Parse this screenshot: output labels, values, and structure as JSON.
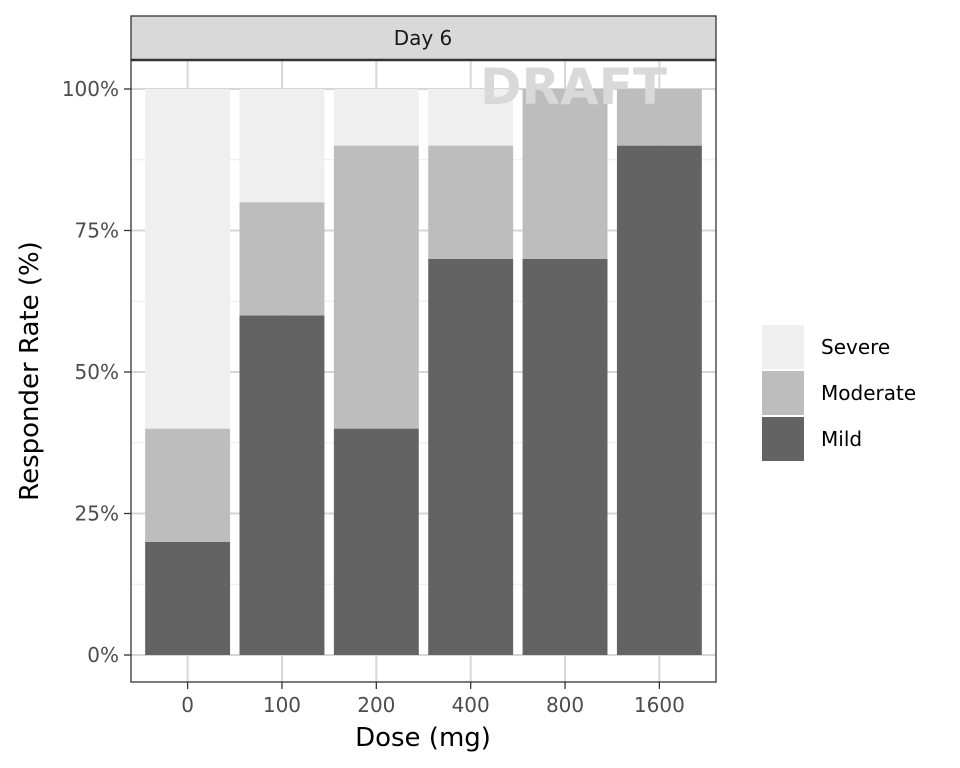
{
  "chart_data": {
    "type": "bar",
    "stacked": true,
    "facet_label": "Day 6",
    "watermark": "DRAFT",
    "categories": [
      "0",
      "100",
      "200",
      "400",
      "800",
      "1600"
    ],
    "series": [
      {
        "name": "Mild",
        "values": [
          20,
          60,
          40,
          70,
          70,
          90
        ],
        "color": "#636363"
      },
      {
        "name": "Moderate",
        "values": [
          20,
          20,
          50,
          20,
          30,
          10
        ],
        "color": "#bdbdbd"
      },
      {
        "name": "Severe",
        "values": [
          60,
          20,
          10,
          10,
          0,
          0
        ],
        "color": "#efefef"
      }
    ],
    "legend_order": [
      "Severe",
      "Moderate",
      "Mild"
    ],
    "legend_position": "right",
    "xlabel": "Dose (mg)",
    "ylabel": "Responder Rate (%)",
    "ylim": [
      0,
      100
    ],
    "y_ticks": [
      0,
      25,
      50,
      75,
      100
    ],
    "y_tick_labels": [
      "0%",
      "25%",
      "50%",
      "75%",
      "100%"
    ],
    "grid": true
  }
}
